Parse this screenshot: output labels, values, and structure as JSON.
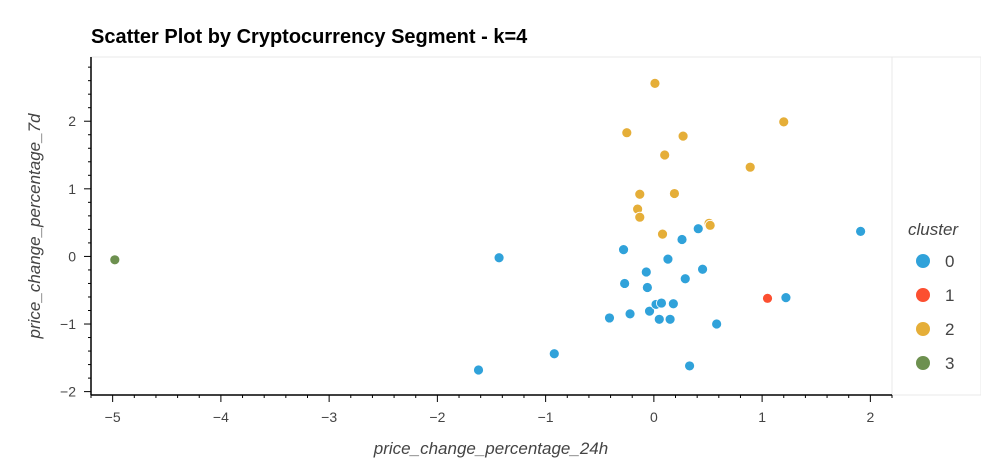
{
  "chart_data": {
    "type": "scatter",
    "title": "Scatter Plot by Cryptocurrency Segment - k=4",
    "xlabel": "price_change_percentage_24h",
    "ylabel": "price_change_percentage_7d",
    "xlim": [
      -5.2,
      2.2
    ],
    "ylim": [
      -2.05,
      2.95
    ],
    "x_ticks": [
      -5,
      -4,
      -3,
      -2,
      -1,
      0,
      1,
      2
    ],
    "x_tick_labels": [
      "−5",
      "−4",
      "−3",
      "−2",
      "−1",
      "0",
      "1",
      "2"
    ],
    "y_ticks": [
      -2,
      -1,
      0,
      1,
      2
    ],
    "y_tick_labels": [
      "−2",
      "−1",
      "0",
      "1",
      "2"
    ],
    "grid": false,
    "legend_title": "cluster",
    "legend_position": "right",
    "series": [
      {
        "name": "0",
        "color": "#30a2da",
        "points": [
          [
            -1.62,
            -1.68
          ],
          [
            -1.43,
            -0.02
          ],
          [
            -0.92,
            -1.44
          ],
          [
            -0.41,
            -0.91
          ],
          [
            -0.28,
            0.1
          ],
          [
            -0.27,
            -0.4
          ],
          [
            -0.22,
            -0.85
          ],
          [
            -0.07,
            -0.23
          ],
          [
            -0.06,
            -0.46
          ],
          [
            -0.04,
            -0.81
          ],
          [
            0.02,
            -0.71
          ],
          [
            0.05,
            -0.93
          ],
          [
            0.07,
            -0.69
          ],
          [
            0.13,
            -0.04
          ],
          [
            0.15,
            -0.93
          ],
          [
            0.18,
            -0.7
          ],
          [
            0.26,
            0.25
          ],
          [
            0.29,
            -0.33
          ],
          [
            0.33,
            -1.62
          ],
          [
            0.41,
            0.41
          ],
          [
            0.45,
            -0.19
          ],
          [
            0.58,
            -1.0
          ],
          [
            1.22,
            -0.61
          ],
          [
            1.91,
            0.37
          ]
        ]
      },
      {
        "name": "1",
        "color": "#fc4f30",
        "points": [
          [
            1.05,
            -0.62
          ]
        ]
      },
      {
        "name": "2",
        "color": "#e5ae38",
        "points": [
          [
            0.01,
            2.56
          ],
          [
            -0.25,
            1.83
          ],
          [
            0.27,
            1.78
          ],
          [
            1.2,
            1.99
          ],
          [
            0.1,
            1.5
          ],
          [
            0.89,
            1.32
          ],
          [
            -0.13,
            0.92
          ],
          [
            0.19,
            0.93
          ],
          [
            -0.15,
            0.7
          ],
          [
            -0.13,
            0.58
          ],
          [
            0.51,
            0.49
          ],
          [
            0.52,
            0.46
          ],
          [
            0.08,
            0.33
          ]
        ]
      },
      {
        "name": "3",
        "color": "#6d904f",
        "points": [
          [
            -4.98,
            -0.05
          ]
        ]
      }
    ]
  }
}
